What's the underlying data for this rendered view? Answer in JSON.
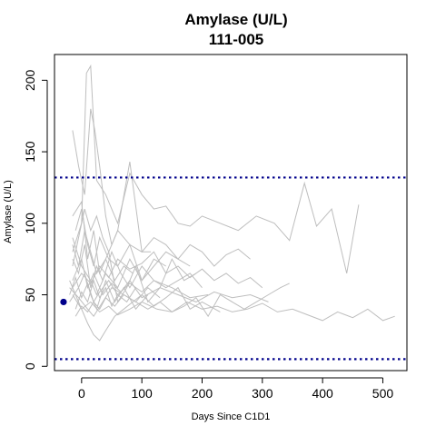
{
  "chart_data": {
    "type": "line",
    "title": "Amylase (U/L)",
    "subtitle": "111-005",
    "xlabel": "Days Since C1D1",
    "ylabel": "Amylase (U/L)",
    "xlim": [
      -45,
      540
    ],
    "ylim": [
      -3,
      218
    ],
    "xticks": [
      0,
      100,
      200,
      300,
      400,
      500
    ],
    "yticks": [
      0,
      50,
      100,
      150,
      200
    ],
    "reference_lines": [
      {
        "y": 132,
        "color": "#00008b",
        "style": "dotted"
      },
      {
        "y": 5,
        "color": "#00008b",
        "style": "dotted"
      }
    ],
    "background_series_color": "#bebebe",
    "highlight_point": {
      "x": -30,
      "y": 45,
      "color": "#00008b"
    },
    "series": [
      {
        "x": [
          -15,
          0,
          8,
          15,
          25,
          40,
          60,
          80,
          100,
          120,
          140,
          160,
          180,
          200,
          230,
          260,
          290,
          320,
          345,
          370,
          390,
          415,
          440,
          460
        ],
        "values": [
          80,
          100,
          205,
          210,
          130,
          120,
          100,
          135,
          120,
          110,
          112,
          100,
          98,
          105,
          100,
          95,
          105,
          100,
          88,
          128,
          98,
          110,
          65,
          113
        ]
      },
      {
        "x": [
          -15,
          -5,
          5,
          15,
          22,
          30,
          40,
          50,
          60,
          80,
          100,
          115
        ],
        "values": [
          165,
          140,
          120,
          180,
          165,
          140,
          105,
          85,
          95,
          143,
          80,
          80
        ]
      },
      {
        "x": [
          -15,
          0,
          10,
          20,
          30,
          45,
          60,
          75,
          90,
          110,
          130,
          150,
          170,
          190
        ],
        "values": [
          105,
          115,
          75,
          95,
          65,
          80,
          45,
          55,
          70,
          45,
          55,
          75,
          60,
          65
        ]
      },
      {
        "x": [
          -20,
          -5,
          10,
          20,
          35,
          50,
          70,
          90,
          110,
          130,
          150,
          170,
          190,
          210,
          230,
          250,
          270,
          290,
          310,
          330,
          345
        ],
        "values": [
          55,
          48,
          40,
          35,
          45,
          55,
          50,
          45,
          40,
          45,
          38,
          42,
          48,
          35,
          50,
          45,
          40,
          45,
          50,
          55,
          58
        ]
      },
      {
        "x": [
          -15,
          0,
          15,
          25,
          40,
          60,
          80,
          100,
          120,
          140,
          160,
          180,
          200,
          220,
          240,
          260,
          280
        ],
        "values": [
          90,
          70,
          60,
          50,
          65,
          55,
          75,
          60,
          70,
          80,
          75,
          85,
          80,
          70,
          78,
          82,
          75
        ]
      },
      {
        "x": [
          -20,
          -5,
          10,
          20,
          30,
          40,
          55,
          70,
          85,
          100,
          120,
          140,
          160,
          180,
          200,
          230
        ],
        "values": [
          60,
          45,
          30,
          22,
          18,
          25,
          35,
          40,
          45,
          50,
          42,
          48,
          55,
          40,
          45,
          38
        ]
      },
      {
        "x": [
          -15,
          0,
          15,
          30,
          45,
          60,
          80,
          100,
          125,
          150,
          175,
          200,
          225,
          250,
          275,
          300,
          325,
          350,
          375,
          400,
          425,
          450,
          475,
          500,
          520
        ],
        "values": [
          50,
          40,
          45,
          38,
          42,
          36,
          40,
          45,
          40,
          38,
          45,
          40,
          42,
          38,
          40,
          44,
          38,
          40,
          36,
          32,
          38,
          34,
          40,
          32,
          35
        ]
      },
      {
        "x": [
          -10,
          0,
          10,
          20,
          30,
          45,
          60,
          80,
          100,
          120,
          140
        ],
        "values": [
          95,
          110,
          85,
          70,
          90,
          75,
          70,
          85,
          60,
          75,
          70
        ]
      },
      {
        "x": [
          -15,
          -5,
          5,
          15,
          25,
          35,
          50,
          65,
          80,
          100,
          120,
          140,
          160,
          180,
          200
        ],
        "values": [
          75,
          65,
          85,
          55,
          70,
          60,
          80,
          65,
          55,
          70,
          60,
          55,
          60,
          65,
          55
        ]
      },
      {
        "x": [
          -20,
          -5,
          5,
          15,
          25,
          40,
          55,
          70,
          90,
          110
        ],
        "values": [
          45,
          55,
          65,
          50,
          40,
          60,
          45,
          55,
          40,
          50
        ]
      },
      {
        "x": [
          -15,
          0,
          10,
          20,
          35,
          50,
          65,
          80,
          100,
          130,
          160,
          190,
          220,
          250,
          280,
          310
        ],
        "values": [
          60,
          75,
          55,
          65,
          50,
          58,
          52,
          60,
          48,
          55,
          50,
          45,
          52,
          48,
          50,
          45
        ]
      },
      {
        "x": [
          -10,
          0,
          10,
          20,
          30,
          40,
          50,
          60,
          75,
          90
        ],
        "values": [
          40,
          52,
          45,
          60,
          48,
          55,
          42,
          50,
          45,
          55
        ]
      },
      {
        "x": [
          -15,
          -5,
          5,
          15,
          25,
          35,
          45,
          60,
          80,
          100,
          120,
          140,
          160,
          180
        ],
        "values": [
          70,
          90,
          110,
          95,
          105,
          90,
          80,
          95,
          85,
          80,
          90,
          85,
          75,
          70
        ]
      },
      {
        "x": [
          -20,
          -10,
          0,
          10,
          20,
          30,
          45,
          60,
          80,
          100,
          120,
          150,
          180,
          210
        ],
        "values": [
          50,
          62,
          48,
          58,
          45,
          52,
          60,
          50,
          58,
          52,
          60,
          55,
          48,
          50
        ]
      },
      {
        "x": [
          -15,
          -5,
          5,
          15,
          25,
          40,
          55,
          70,
          85
        ],
        "values": [
          85,
          70,
          95,
          80,
          65,
          75,
          60,
          70,
          65
        ]
      },
      {
        "x": [
          -10,
          0,
          10,
          20,
          30,
          40,
          55,
          70,
          90,
          110,
          130
        ],
        "values": [
          35,
          42,
          38,
          45,
          40,
          48,
          42,
          50,
          45,
          55,
          48
        ]
      },
      {
        "x": [
          -15,
          0,
          15,
          30,
          45,
          60,
          80,
          100,
          120,
          140,
          160,
          180,
          200,
          220,
          240,
          260,
          280,
          300
        ],
        "values": [
          55,
          65,
          58,
          70,
          62,
          75,
          68,
          72,
          80,
          65,
          70,
          62,
          68,
          60,
          65,
          58,
          62,
          55
        ]
      }
    ]
  }
}
